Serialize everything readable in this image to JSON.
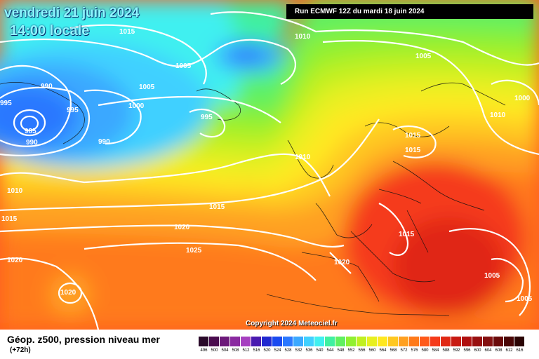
{
  "header": {
    "date": "vendredi 21 juin 2024",
    "time": "14:00 locale",
    "run": "Run ECMWF 12Z du mardi 18 juin 2024"
  },
  "copyright": "Copyright 2024 Meteociel.fr",
  "footer": {
    "title": "Géop. z500, pression niveau mer",
    "subtitle": "(+72h)"
  },
  "legend": {
    "ticks": [
      "496",
      "500",
      "504",
      "508",
      "512",
      "516",
      "520",
      "524",
      "528",
      "532",
      "536",
      "540",
      "544",
      "548",
      "552",
      "556",
      "560",
      "564",
      "568",
      "572",
      "576",
      "580",
      "584",
      "588",
      "592",
      "596",
      "600",
      "604",
      "608",
      "612",
      "616"
    ],
    "colors": [
      "#2a0a2a",
      "#4a0c4e",
      "#6d1a7a",
      "#8a2aa0",
      "#a640c0",
      "#4a1ab0",
      "#2028d0",
      "#1a4af0",
      "#2a78ff",
      "#3aa8ff",
      "#40d0ff",
      "#40f0f0",
      "#40f0a0",
      "#60f060",
      "#90f030",
      "#c0f020",
      "#e8f020",
      "#ffe820",
      "#ffc820",
      "#ffa020",
      "#ff7a1a",
      "#ff5a1a",
      "#f53a1a",
      "#e02814",
      "#c81a12",
      "#b01010",
      "#981010",
      "#841010",
      "#6a0a0a",
      "#4a0606",
      "#2a0404"
    ]
  },
  "map_colors": {
    "deep_blue": "#1a4af0",
    "blue": "#2a78ff",
    "sky": "#3aa8ff",
    "cyan": "#40d0ff",
    "aqua": "#40f0f0",
    "mint": "#40f0a0",
    "green": "#60f060",
    "lime": "#90f030",
    "yellowgreen": "#c0f020",
    "yellow": "#e8f020",
    "gold": "#ffe820",
    "amber": "#ffc820",
    "orange": "#ffa020",
    "darkorange": "#ff7a1a",
    "red": "#ff5a1a",
    "deepred": "#f53a1a",
    "crimson": "#e02814"
  },
  "isobars": [
    "1015",
    "1010",
    "1005",
    "990",
    "985",
    "990",
    "995",
    "995",
    "990",
    "1000",
    "995",
    "1010",
    "1005",
    "1005",
    "1000",
    "1015",
    "1015",
    "1010",
    "1010",
    "1015",
    "1020",
    "1025",
    "1015",
    "1020",
    "1020",
    "1020",
    "1015",
    "1005",
    "1005"
  ]
}
